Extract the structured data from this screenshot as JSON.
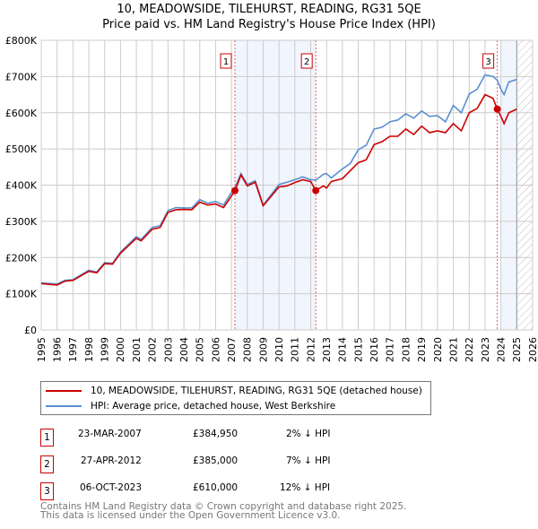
{
  "chart_data": {
    "type": "line",
    "title": "10, MEADOWSIDE, TILEHURST, READING, RG31 5QE",
    "subtitle": "Price paid vs. HM Land Registry's House Price Index (HPI)",
    "xlim": [
      1995,
      2026
    ],
    "ylim": [
      0,
      800000
    ],
    "x_ticks": [
      "1995",
      "1996",
      "1997",
      "1998",
      "1999",
      "2000",
      "2001",
      "2002",
      "2003",
      "2004",
      "2005",
      "2006",
      "2007",
      "2008",
      "2009",
      "2010",
      "2011",
      "2012",
      "2013",
      "2014",
      "2015",
      "2016",
      "2017",
      "2018",
      "2019",
      "2020",
      "2021",
      "2022",
      "2023",
      "2024",
      "2025",
      "2026"
    ],
    "y_ticks": [
      {
        "v": 0,
        "l": "£0"
      },
      {
        "v": 100000,
        "l": "£100K"
      },
      {
        "v": 200000,
        "l": "£200K"
      },
      {
        "v": 300000,
        "l": "£300K"
      },
      {
        "v": 400000,
        "l": "£400K"
      },
      {
        "v": 500000,
        "l": "£500K"
      },
      {
        "v": 600000,
        "l": "£600K"
      },
      {
        "v": 700000,
        "l": "£700K"
      },
      {
        "v": 800000,
        "l": "£800K"
      }
    ],
    "grid": true,
    "shaded_ranges": [
      [
        2007.22,
        2012.32
      ],
      [
        2024.0,
        2025.0
      ]
    ],
    "hatched_from": 2025.0,
    "series": [
      {
        "name": "10, MEADOWSIDE, TILEHURST, READING, RG31 5QE (detached house)",
        "color": "#cc0000",
        "x": [
          1995,
          1996,
          1996.5,
          1997,
          1998,
          1998.5,
          1999,
          1999.5,
          2000,
          2001,
          2001.3,
          2002,
          2002.5,
          2003,
          2003.5,
          2004,
          2004.5,
          2005,
          2005.5,
          2006,
          2006.5,
          2007,
          2007.22,
          2007.6,
          2008,
          2008.5,
          2009,
          2010,
          2010.5,
          2011,
          2011.5,
          2012,
          2012.32,
          2012.8,
          2013,
          2013.3,
          2014,
          2014.5,
          2015,
          2015.5,
          2016,
          2016.5,
          2017,
          2017.5,
          2018,
          2018.5,
          2019,
          2019.5,
          2020,
          2020.5,
          2021,
          2021.5,
          2022,
          2022.5,
          2023,
          2023.5,
          2023.77,
          2024,
          2024.2,
          2024.5,
          2025
        ],
        "y": [
          128000,
          124000,
          135000,
          137000,
          162000,
          158000,
          183000,
          182000,
          212000,
          253000,
          246000,
          278000,
          283000,
          325000,
          332000,
          333000,
          332000,
          353000,
          345000,
          348000,
          338000,
          370000,
          384950,
          428000,
          398000,
          408000,
          343000,
          395000,
          398000,
          407000,
          415000,
          410000,
          385000,
          398000,
          392000,
          410000,
          418000,
          440000,
          462000,
          470000,
          512000,
          520000,
          535000,
          535000,
          555000,
          540000,
          563000,
          545000,
          550000,
          545000,
          570000,
          550000,
          600000,
          612000,
          650000,
          640000,
          610000,
          590000,
          570000,
          600000,
          610000
        ]
      },
      {
        "name": "HPI: Average price, detached house, West Berkshire",
        "color": "#5b8fd0",
        "x": [
          1995,
          1996,
          1996.5,
          1997,
          1998,
          1998.5,
          1999,
          1999.5,
          2000,
          2001,
          2001.3,
          2002,
          2002.5,
          2003,
          2003.5,
          2004,
          2004.5,
          2005,
          2005.5,
          2006,
          2006.5,
          2007,
          2007.22,
          2007.6,
          2008,
          2008.5,
          2009,
          2010,
          2010.5,
          2011,
          2011.5,
          2012,
          2012.32,
          2012.8,
          2013,
          2013.3,
          2014,
          2014.5,
          2015,
          2015.5,
          2016,
          2016.5,
          2017,
          2017.5,
          2018,
          2018.5,
          2019,
          2019.5,
          2020,
          2020.5,
          2021,
          2021.5,
          2022,
          2022.5,
          2023,
          2023.5,
          2023.77,
          2024,
          2024.2,
          2024.5,
          2025
        ],
        "y": [
          130000,
          127000,
          137000,
          139000,
          165000,
          160000,
          186000,
          184000,
          215000,
          258000,
          250000,
          283000,
          288000,
          330000,
          338000,
          337000,
          337000,
          360000,
          350000,
          355000,
          345000,
          380000,
          393000,
          432000,
          402000,
          412000,
          345000,
          402000,
          408000,
          415000,
          423000,
          415000,
          414000,
          430000,
          432000,
          420000,
          445000,
          460000,
          498000,
          510000,
          555000,
          560000,
          575000,
          580000,
          597000,
          585000,
          605000,
          590000,
          592000,
          575000,
          620000,
          600000,
          652000,
          665000,
          705000,
          700000,
          690000,
          665000,
          650000,
          685000,
          692000
        ]
      }
    ],
    "sales": [
      {
        "label": "1",
        "x": 2007.22,
        "y": 384950
      },
      {
        "label": "2",
        "x": 2012.32,
        "y": 385000
      },
      {
        "label": "3",
        "x": 2023.77,
        "y": 610000
      }
    ]
  },
  "table": [
    {
      "n": "1",
      "date": "23-MAR-2007",
      "price": "£384,950",
      "diff": "2% ↓ HPI"
    },
    {
      "n": "2",
      "date": "27-APR-2012",
      "price": "£385,000",
      "diff": "7% ↓ HPI"
    },
    {
      "n": "3",
      "date": "06-OCT-2023",
      "price": "£610,000",
      "diff": "12% ↓ HPI"
    }
  ],
  "footer": {
    "line1": "Contains HM Land Registry data © Crown copyright and database right 2025.",
    "line2": "This data is licensed under the Open Government Licence v3.0."
  }
}
